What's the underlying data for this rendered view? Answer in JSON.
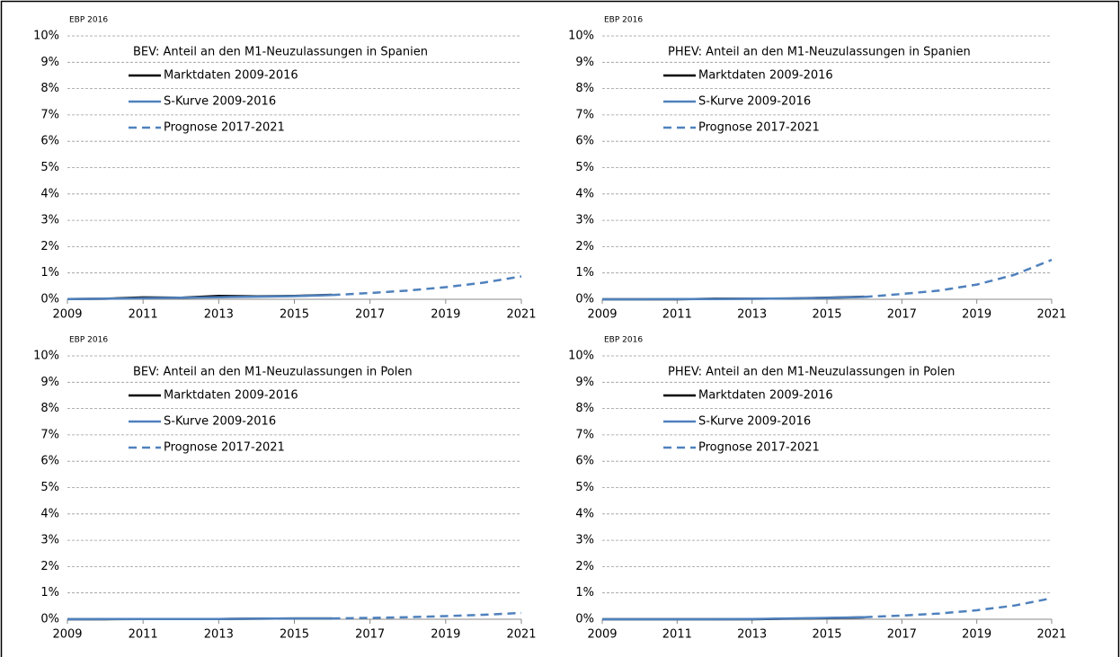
{
  "chart_data": [
    {
      "type": "line",
      "source": "EBP 2016",
      "title": "BEV: Anteil an den M1-Neuzulassungen in Spanien",
      "xlim": [
        2009,
        2021
      ],
      "xticks": [
        2009,
        2011,
        2013,
        2015,
        2017,
        2019,
        2021
      ],
      "ylim": [
        0,
        10
      ],
      "yticks": [
        {
          "value": 0,
          "label": "0%"
        },
        {
          "value": 1,
          "label": "1%"
        },
        {
          "value": 2,
          "label": "2%"
        },
        {
          "value": 3,
          "label": "3%"
        },
        {
          "value": 4,
          "label": "4%"
        },
        {
          "value": 5,
          "label": "5%"
        },
        {
          "value": 6,
          "label": "6%"
        },
        {
          "value": 7,
          "label": "7%"
        },
        {
          "value": 8,
          "label": "8%"
        },
        {
          "value": 9,
          "label": "9%"
        },
        {
          "value": 10,
          "label": "10%"
        }
      ],
      "grid": true,
      "series": [
        {
          "name": "Marktdaten 2009-2016",
          "color": "#000000",
          "line_style": "solid",
          "x": [
            2009,
            2010,
            2011,
            2012,
            2013,
            2014,
            2015,
            2016
          ],
          "values": [
            0.01,
            0.02,
            0.07,
            0.06,
            0.13,
            0.11,
            0.13,
            0.17
          ]
        },
        {
          "name": "S-Kurve 2009-2016",
          "color": "#4f81bd",
          "line_style": "solid",
          "x": [
            2009,
            2010,
            2011,
            2012,
            2013,
            2014,
            2015,
            2016
          ],
          "values": [
            0.01,
            0.02,
            0.04,
            0.06,
            0.08,
            0.1,
            0.12,
            0.16
          ]
        },
        {
          "name": "Prognose 2017-2021",
          "color": "#4f81bd",
          "line_style": "dashed",
          "x": [
            2016,
            2017,
            2018,
            2019,
            2020,
            2021
          ],
          "values": [
            0.16,
            0.24,
            0.33,
            0.46,
            0.63,
            0.87
          ]
        }
      ]
    },
    {
      "type": "line",
      "source": "EBP 2016",
      "title": "PHEV: Anteil an den M1-Neuzulassungen in Spanien",
      "xlim": [
        2009,
        2021
      ],
      "xticks": [
        2009,
        2011,
        2013,
        2015,
        2017,
        2019,
        2021
      ],
      "ylim": [
        0,
        10
      ],
      "yticks": [
        {
          "value": 0,
          "label": "0%"
        },
        {
          "value": 1,
          "label": "1%"
        },
        {
          "value": 2,
          "label": "2%"
        },
        {
          "value": 3,
          "label": "3%"
        },
        {
          "value": 4,
          "label": "4%"
        },
        {
          "value": 5,
          "label": "5%"
        },
        {
          "value": 6,
          "label": "6%"
        },
        {
          "value": 7,
          "label": "7%"
        },
        {
          "value": 8,
          "label": "8%"
        },
        {
          "value": 9,
          "label": "9%"
        },
        {
          "value": 10,
          "label": "10%"
        }
      ],
      "grid": true,
      "series": [
        {
          "name": "Marktdaten 2009-2016",
          "color": "#000000",
          "line_style": "solid",
          "x": [
            2009,
            2010,
            2011,
            2012,
            2013,
            2014,
            2015,
            2016
          ],
          "values": [
            0,
            0,
            0,
            0.02,
            0.02,
            0.03,
            0.06,
            0.1
          ]
        },
        {
          "name": "S-Kurve 2009-2016",
          "color": "#4f81bd",
          "line_style": "solid",
          "x": [
            2009,
            2010,
            2011,
            2012,
            2013,
            2014,
            2015,
            2016
          ],
          "values": [
            0,
            0,
            0.01,
            0.01,
            0.02,
            0.03,
            0.05,
            0.09
          ]
        },
        {
          "name": "Prognose 2017-2021",
          "color": "#4f81bd",
          "line_style": "dashed",
          "x": [
            2016,
            2017,
            2018,
            2019,
            2020,
            2021
          ],
          "values": [
            0.09,
            0.2,
            0.33,
            0.56,
            0.93,
            1.5
          ]
        }
      ]
    },
    {
      "type": "line",
      "source": "EBP 2016",
      "title": "BEV: Anteil an den M1-Neuzulassungen in Polen",
      "xlim": [
        2009,
        2021
      ],
      "xticks": [
        2009,
        2011,
        2013,
        2015,
        2017,
        2019,
        2021
      ],
      "ylim": [
        0,
        10
      ],
      "yticks": [
        {
          "value": 0,
          "label": "0%"
        },
        {
          "value": 1,
          "label": "1%"
        },
        {
          "value": 2,
          "label": "2%"
        },
        {
          "value": 3,
          "label": "3%"
        },
        {
          "value": 4,
          "label": "4%"
        },
        {
          "value": 5,
          "label": "5%"
        },
        {
          "value": 6,
          "label": "6%"
        },
        {
          "value": 7,
          "label": "7%"
        },
        {
          "value": 8,
          "label": "8%"
        },
        {
          "value": 9,
          "label": "9%"
        },
        {
          "value": 10,
          "label": "10%"
        }
      ],
      "grid": true,
      "series": [
        {
          "name": "Marktdaten 2009-2016",
          "color": "#000000",
          "line_style": "solid",
          "x": [
            2009,
            2010,
            2011,
            2012,
            2013,
            2014,
            2015,
            2016
          ],
          "values": [
            0,
            0,
            0.01,
            0.01,
            0.01,
            0.02,
            0.03,
            0.03
          ]
        },
        {
          "name": "S-Kurve 2009-2016",
          "color": "#4f81bd",
          "line_style": "solid",
          "x": [
            2009,
            2010,
            2011,
            2012,
            2013,
            2014,
            2015,
            2016
          ],
          "values": [
            0,
            0.01,
            0.01,
            0.01,
            0.01,
            0.02,
            0.03,
            0.03
          ]
        },
        {
          "name": "Prognose 2017-2021",
          "color": "#4f81bd",
          "line_style": "dashed",
          "x": [
            2016,
            2017,
            2018,
            2019,
            2020,
            2021
          ],
          "values": [
            0.03,
            0.05,
            0.08,
            0.12,
            0.17,
            0.24
          ]
        }
      ]
    },
    {
      "type": "line",
      "source": "EBP 2016",
      "title": "PHEV: Anteil an den M1-Neuzulassungen in Polen",
      "xlim": [
        2009,
        2021
      ],
      "xticks": [
        2009,
        2011,
        2013,
        2015,
        2017,
        2019,
        2021
      ],
      "ylim": [
        0,
        10
      ],
      "yticks": [
        {
          "value": 0,
          "label": "0%"
        },
        {
          "value": 1,
          "label": "1%"
        },
        {
          "value": 2,
          "label": "2%"
        },
        {
          "value": 3,
          "label": "3%"
        },
        {
          "value": 4,
          "label": "4%"
        },
        {
          "value": 5,
          "label": "5%"
        },
        {
          "value": 6,
          "label": "6%"
        },
        {
          "value": 7,
          "label": "7%"
        },
        {
          "value": 8,
          "label": "8%"
        },
        {
          "value": 9,
          "label": "9%"
        },
        {
          "value": 10,
          "label": "10%"
        }
      ],
      "grid": true,
      "series": [
        {
          "name": "Marktdaten 2009-2016",
          "color": "#000000",
          "line_style": "solid",
          "x": [
            2009,
            2010,
            2011,
            2012,
            2013,
            2014,
            2015,
            2016
          ],
          "values": [
            0,
            0,
            0,
            0,
            0,
            0.02,
            0.04,
            0.07
          ]
        },
        {
          "name": "S-Kurve 2009-2016",
          "color": "#4f81bd",
          "line_style": "solid",
          "x": [
            2009,
            2010,
            2011,
            2012,
            2013,
            2014,
            2015,
            2016
          ],
          "values": [
            0,
            0,
            0,
            0,
            0.01,
            0.03,
            0.05,
            0.08
          ]
        },
        {
          "name": "Prognose 2017-2021",
          "color": "#4f81bd",
          "line_style": "dashed",
          "x": [
            2016,
            2017,
            2018,
            2019,
            2020,
            2021
          ],
          "values": [
            0.08,
            0.14,
            0.22,
            0.34,
            0.52,
            0.8
          ]
        }
      ]
    }
  ]
}
